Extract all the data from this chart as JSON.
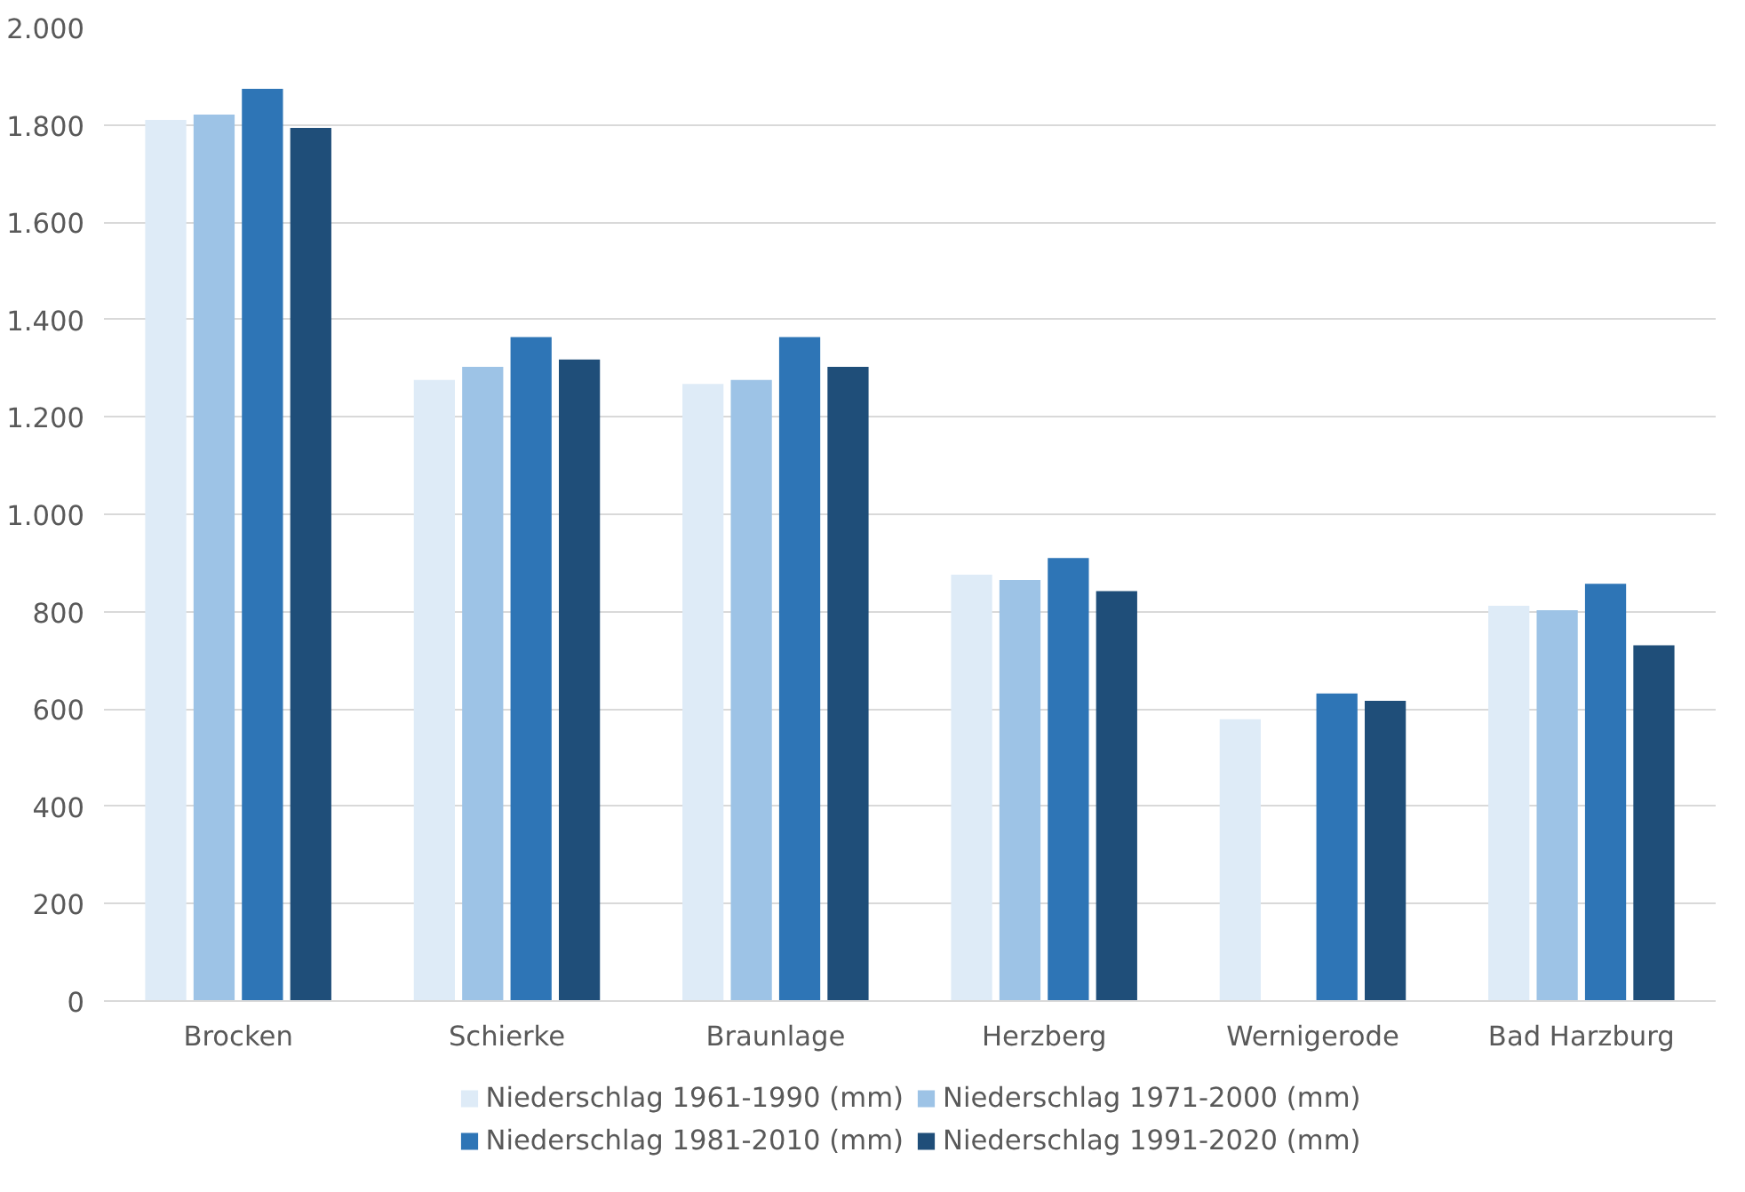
{
  "chart_data": {
    "type": "bar",
    "categories": [
      "Brocken",
      "Schierke",
      "Braunlage",
      "Herzberg",
      "Wernigerode",
      "Bad Harzburg"
    ],
    "series": [
      {
        "name": "Niederschlag 1961-1990 (mm)",
        "color": "#deebf7",
        "values": [
          1810,
          1276,
          1268,
          876,
          579,
          812
        ]
      },
      {
        "name": "Niederschlag 1971-2000 (mm)",
        "color": "#9dc3e6",
        "values": [
          1821,
          1303,
          1276,
          865,
          null,
          803
        ]
      },
      {
        "name": "Niederschlag 1981-2010 (mm)",
        "color": "#2e75b6",
        "values": [
          1874,
          1364,
          1364,
          910,
          632,
          857
        ]
      },
      {
        "name": "Niederschlag 1991-2020 (mm)",
        "color": "#1f4e79",
        "values": [
          1794,
          1318,
          1303,
          842,
          617,
          731
        ]
      }
    ],
    "ylim": [
      0,
      2000
    ],
    "yticks": [
      {
        "value": 0,
        "label": "0"
      },
      {
        "value": 200,
        "label": "200"
      },
      {
        "value": 400,
        "label": "400"
      },
      {
        "value": 600,
        "label": "600"
      },
      {
        "value": 800,
        "label": "800"
      },
      {
        "value": 1000,
        "label": "1.000"
      },
      {
        "value": 1200,
        "label": "1.200"
      },
      {
        "value": 1400,
        "label": "1.400"
      },
      {
        "value": 1600,
        "label": "1.600"
      },
      {
        "value": 1800,
        "label": "1.800"
      },
      {
        "value": 2000,
        "label": "2.000"
      }
    ],
    "grid": "y",
    "legend": "bottom"
  }
}
